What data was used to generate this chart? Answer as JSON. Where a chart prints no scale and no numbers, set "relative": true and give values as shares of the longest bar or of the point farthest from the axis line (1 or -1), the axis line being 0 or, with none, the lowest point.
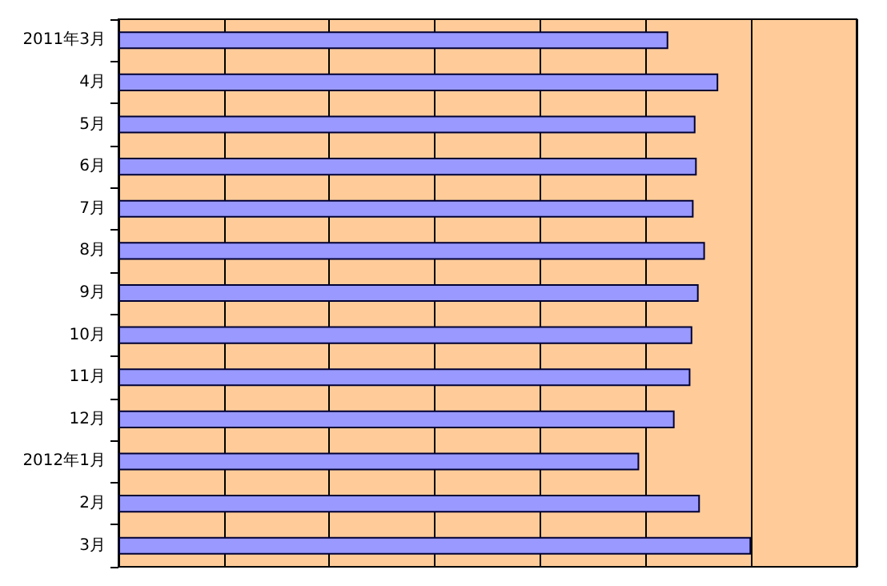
{
  "chart_data": {
    "type": "bar",
    "orientation": "horizontal",
    "relative": true,
    "grid": "x",
    "categories": [
      "2011年3月",
      "4月",
      "5月",
      "6月",
      "7月",
      "8月",
      "9月",
      "10月",
      "11月",
      "12月",
      "2012年1月",
      "2月",
      "3月"
    ],
    "values": [
      0.869,
      0.948,
      0.912,
      0.914,
      0.909,
      0.927,
      0.917,
      0.907,
      0.904,
      0.879,
      0.823,
      0.919,
      1
    ],
    "color": "#9999ff"
  }
}
